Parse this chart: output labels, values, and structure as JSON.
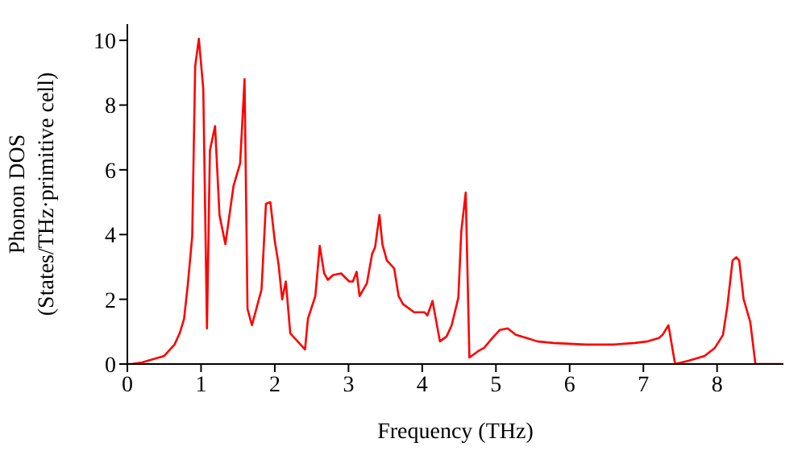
{
  "chart_data": {
    "type": "line",
    "xlabel": "Frequency (THz)",
    "ylabel": "Phonon DOS\n(States/THz·primitive cell)",
    "xlim": [
      0,
      8.9
    ],
    "xticks": [
      0,
      1,
      2,
      3,
      4,
      5,
      6,
      7,
      8
    ],
    "ylim": [
      0,
      10.5
    ],
    "yticks": [
      0,
      2,
      4,
      6,
      8,
      10
    ],
    "grid": false,
    "legend": false,
    "marker": "none",
    "line_style": "solid",
    "series": [
      {
        "color": "#ff0000",
        "x": [
          0,
          0.06,
          0.2,
          0.5,
          0.64,
          0.71,
          0.77,
          0.82,
          0.88,
          0.92,
          0.97,
          1.03,
          1.08,
          1.12,
          1.19,
          1.25,
          1.33,
          1.44,
          1.53,
          1.59,
          1.63,
          1.69,
          1.82,
          1.88,
          1.94,
          2.0,
          2.05,
          2.1,
          2.15,
          2.21,
          2.41,
          2.45,
          2.55,
          2.61,
          2.67,
          2.72,
          2.79,
          2.9,
          3.01,
          3.06,
          3.11,
          3.15,
          3.25,
          3.32,
          3.36,
          3.42,
          3.46,
          3.52,
          3.62,
          3.68,
          3.74,
          3.89,
          4.03,
          4.07,
          4.14,
          4.24,
          4.33,
          4.4,
          4.49,
          4.53,
          4.59,
          4.64,
          4.76,
          4.84,
          4.95,
          5.05,
          5.16,
          5.27,
          5.42,
          5.56,
          5.78,
          6.22,
          6.59,
          6.88,
          7.06,
          7.21,
          7.26,
          7.34,
          7.43,
          7.61,
          7.83,
          7.97,
          8.08,
          8.14,
          8.21,
          8.26,
          8.3,
          8.36,
          8.45,
          8.52,
          8.88
        ],
        "values": [
          0,
          0,
          0.05,
          0.25,
          0.6,
          0.95,
          1.4,
          2.45,
          3.95,
          9.2,
          10.05,
          8.5,
          1.1,
          6.6,
          7.35,
          4.6,
          3.7,
          5.5,
          6.2,
          8.8,
          1.7,
          1.2,
          2.3,
          4.95,
          5.0,
          3.8,
          3.1,
          2.0,
          2.55,
          0.95,
          0.45,
          1.4,
          2.1,
          3.65,
          2.8,
          2.6,
          2.75,
          2.8,
          2.55,
          2.55,
          2.85,
          2.1,
          2.5,
          3.4,
          3.6,
          4.6,
          3.7,
          3.2,
          2.95,
          2.1,
          1.85,
          1.6,
          1.6,
          1.5,
          1.95,
          0.7,
          0.85,
          1.2,
          2.05,
          4.1,
          5.3,
          0.2,
          0.4,
          0.5,
          0.8,
          1.05,
          1.1,
          0.9,
          0.8,
          0.7,
          0.65,
          0.6,
          0.6,
          0.65,
          0.7,
          0.8,
          0.9,
          1.2,
          0,
          0.1,
          0.25,
          0.5,
          0.9,
          1.8,
          3.2,
          3.3,
          3.2,
          2.0,
          1.3,
          0,
          0
        ]
      }
    ]
  }
}
